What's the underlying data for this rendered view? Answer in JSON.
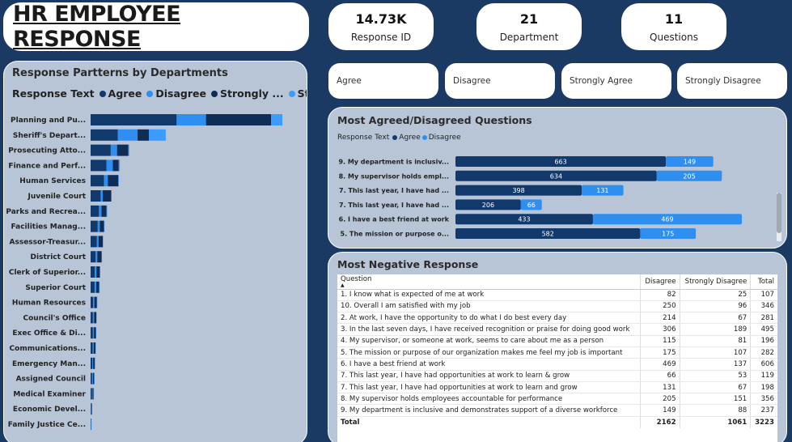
{
  "title": "HR EMPLOYEE RESPONSE",
  "kpis": [
    {
      "value": "14.73K",
      "label": "Response ID"
    },
    {
      "value": "21",
      "label": "Department"
    },
    {
      "value": "11",
      "label": "Questions"
    }
  ],
  "slicers": [
    "Agree",
    "Disagree",
    "Strongly Agree",
    "Strongly Disagree"
  ],
  "colors": {
    "agree": "#12396b",
    "disagree": "#2f8ff0",
    "strongly_agree": "#0f2d55",
    "strongly_disagree": "#3b9bff"
  },
  "dept_chart": {
    "title": "Response Partterns by Departments",
    "legend_title": "Response Text",
    "legend": [
      "Agree",
      "Disagree",
      "Strongly ...",
      "Strongl..."
    ]
  },
  "agree_chart": {
    "title": "Most Agreed/Disagreed Questions",
    "legend_title": "Response Text",
    "legend": [
      "Agree",
      "Disagree"
    ]
  },
  "neg_table": {
    "title": "Most Negative Response",
    "headers": [
      "Question",
      "Disagree",
      "Strongly Disagree",
      "Total"
    ],
    "rows": [
      [
        "1. I know what is expected of me at work",
        "82",
        "25",
        "107"
      ],
      [
        "10. Overall I am satisfied with my job",
        "250",
        "96",
        "346"
      ],
      [
        "2. At work, I have the opportunity to do what I do best every day",
        "214",
        "67",
        "281"
      ],
      [
        "3. In the last seven days, I have received recognition or praise for doing good work",
        "306",
        "189",
        "495"
      ],
      [
        "4. My supervisor, or someone at work, seems to care about me as a person",
        "115",
        "81",
        "196"
      ],
      [
        "5. The mission or purpose of our organization makes me feel my job is important",
        "175",
        "107",
        "282"
      ],
      [
        "6. I have a best friend at work",
        "469",
        "137",
        "606"
      ],
      [
        "7. This last year, I have had opportunities at work to learn & grow",
        "66",
        "53",
        "119"
      ],
      [
        "7. This last year, I have had opportunities at work to learn and grow",
        "131",
        "67",
        "198"
      ],
      [
        "8. My supervisor holds employees accountable for performance",
        "205",
        "151",
        "356"
      ],
      [
        "9. My department is inclusive and demonstrates support of a diverse workforce",
        "149",
        "88",
        "237"
      ]
    ],
    "total": [
      "Total",
      "2162",
      "1061",
      "3223"
    ]
  },
  "chart_data": [
    {
      "type": "bar",
      "orientation": "horizontal",
      "stacked": true,
      "title": "Response Partterns by Departments",
      "categories": [
        "Planning and Pu...",
        "Sheriff's Depart...",
        "Prosecuting Atto...",
        "Finance and Perf...",
        "Human Services",
        "Juvenile Court",
        "Parks and Recrea...",
        "Facilities Manag...",
        "Assessor-Treasur...",
        "District Court",
        "Clerk of Superior...",
        "Superior Court",
        "Human Resources",
        "Council's Office",
        "Exec Office & Di...",
        "Communications...",
        "Emergency Man...",
        "Assigned Council",
        "Medical Examiner",
        "Economic Devel...",
        "Family Justice Ce..."
      ],
      "series": [
        {
          "name": "Agree",
          "values": [
            2050,
            650,
            480,
            380,
            320,
            240,
            200,
            170,
            150,
            120,
            100,
            95,
            60,
            55,
            55,
            50,
            40,
            35,
            30,
            15,
            5
          ]
        },
        {
          "name": "Disagree",
          "values": [
            700,
            470,
            150,
            150,
            90,
            50,
            60,
            50,
            40,
            40,
            40,
            40,
            30,
            30,
            25,
            25,
            20,
            20,
            15,
            5,
            3
          ]
        },
        {
          "name": "Strongly ...",
          "values": [
            1550,
            270,
            270,
            140,
            250,
            200,
            120,
            100,
            100,
            100,
            80,
            70,
            60,
            50,
            45,
            40,
            40,
            30,
            25,
            8,
            4
          ]
        },
        {
          "name": "Strongl...",
          "values": [
            270,
            400,
            20,
            25,
            15,
            10,
            15,
            10,
            10,
            10,
            10,
            10,
            5,
            5,
            5,
            5,
            5,
            5,
            5,
            2,
            1
          ]
        }
      ]
    },
    {
      "type": "bar",
      "orientation": "horizontal",
      "stacked": true,
      "title": "Most Agreed/Disagreed Questions",
      "categories": [
        "9. My department is inclusiv...",
        "8. My supervisor holds empl...",
        "7. This last year, I have had ...",
        "7. This last year, I have had ...",
        "6. I have a best friend at work",
        "5. The mission or purpose o..."
      ],
      "series": [
        {
          "name": "Agree",
          "values": [
            663,
            634,
            398,
            206,
            433,
            582
          ]
        },
        {
          "name": "Disagree",
          "values": [
            149,
            205,
            131,
            66,
            469,
            175
          ]
        }
      ]
    }
  ]
}
